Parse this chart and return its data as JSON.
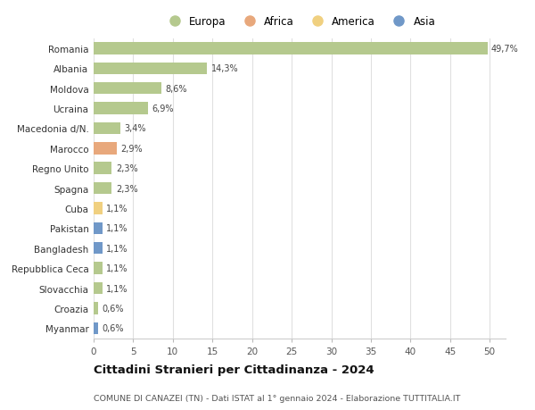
{
  "countries": [
    "Romania",
    "Albania",
    "Moldova",
    "Ucraina",
    "Macedonia d/N.",
    "Marocco",
    "Regno Unito",
    "Spagna",
    "Cuba",
    "Pakistan",
    "Bangladesh",
    "Repubblica Ceca",
    "Slovacchia",
    "Croazia",
    "Myanmar"
  ],
  "values": [
    49.7,
    14.3,
    8.6,
    6.9,
    3.4,
    2.9,
    2.3,
    2.3,
    1.1,
    1.1,
    1.1,
    1.1,
    1.1,
    0.6,
    0.6
  ],
  "labels": [
    "49,7%",
    "14,3%",
    "8,6%",
    "6,9%",
    "3,4%",
    "2,9%",
    "2,3%",
    "2,3%",
    "1,1%",
    "1,1%",
    "1,1%",
    "1,1%",
    "1,1%",
    "0,6%",
    "0,6%"
  ],
  "continents": [
    "Europa",
    "Europa",
    "Europa",
    "Europa",
    "Europa",
    "Africa",
    "Europa",
    "Europa",
    "America",
    "Asia",
    "Asia",
    "Europa",
    "Europa",
    "Europa",
    "Asia"
  ],
  "continent_colors": {
    "Europa": "#b5c98e",
    "Africa": "#e8a87c",
    "America": "#f0d080",
    "Asia": "#7098c8"
  },
  "legend_items": [
    "Europa",
    "Africa",
    "America",
    "Asia"
  ],
  "legend_colors": [
    "#b5c98e",
    "#e8a87c",
    "#f0d080",
    "#7098c8"
  ],
  "title": "Cittadini Stranieri per Cittadinanza - 2024",
  "subtitle": "COMUNE DI CANAZEI (TN) - Dati ISTAT al 1° gennaio 2024 - Elaborazione TUTTITALIA.IT",
  "xlim": [
    0,
    52
  ],
  "xticks": [
    0,
    5,
    10,
    15,
    20,
    25,
    30,
    35,
    40,
    45,
    50
  ],
  "bg_color": "#ffffff",
  "grid_color": "#e0e0e0",
  "bar_height": 0.6
}
